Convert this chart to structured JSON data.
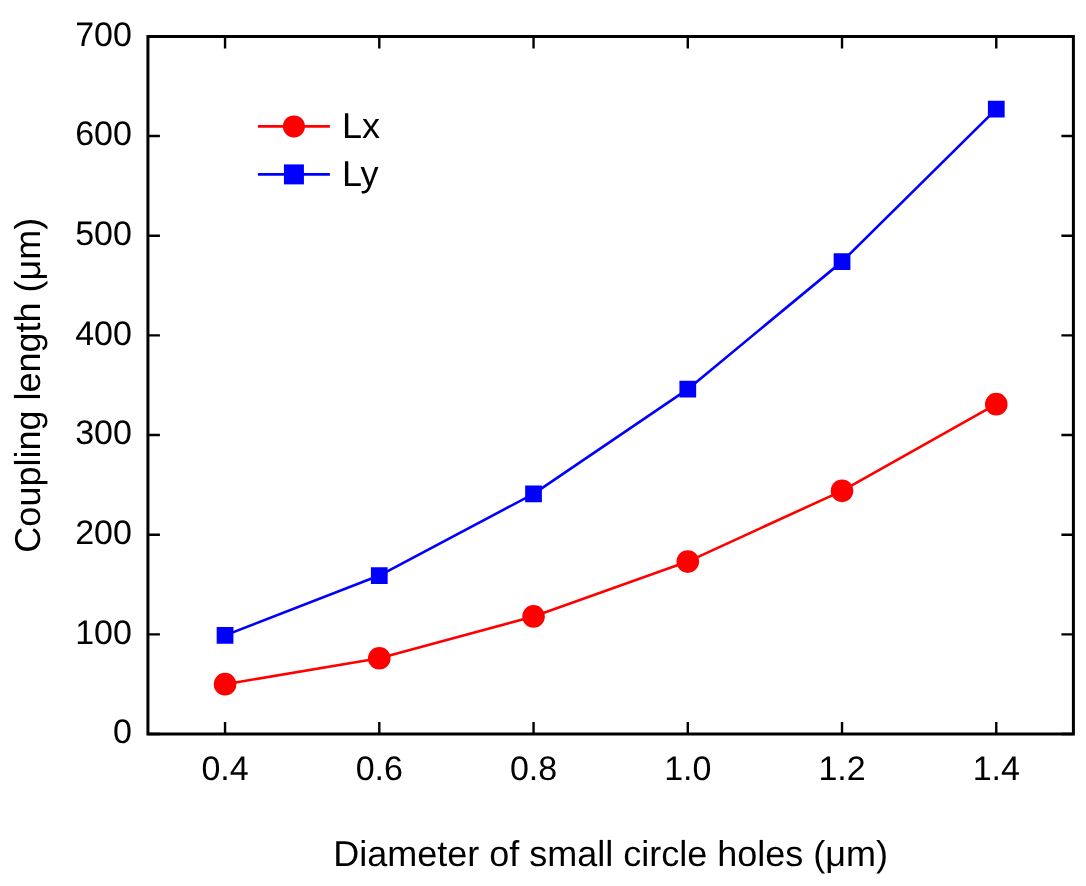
{
  "chart_data": {
    "type": "line",
    "xlabel": "Diameter of small circle holes (μm)",
    "ylabel": "Coupling length (μm)",
    "x": [
      0.4,
      0.6,
      0.8,
      1.0,
      1.2,
      1.4
    ],
    "series": [
      {
        "name": "Lx",
        "color": "#ff0000",
        "marker": "circle",
        "values": [
          50,
          76,
          118,
          173,
          244,
          331
        ]
      },
      {
        "name": "Ly",
        "color": "#0000ff",
        "marker": "square",
        "values": [
          99,
          159,
          241,
          346,
          474,
          627
        ]
      }
    ],
    "xlim": [
      0.3,
      1.5
    ],
    "xticks": [
      {
        "value": 0.4,
        "label": "0.4"
      },
      {
        "value": 0.6,
        "label": "0.6"
      },
      {
        "value": 0.8,
        "label": "0.8"
      },
      {
        "value": 1.0,
        "label": "1.0"
      },
      {
        "value": 1.2,
        "label": "1.2"
      },
      {
        "value": 1.4,
        "label": "1.4"
      }
    ],
    "ylim": [
      0,
      700
    ],
    "yticks": [
      0,
      100,
      200,
      300,
      400,
      500,
      600,
      700
    ],
    "grid": false,
    "legend": "top left",
    "line_style": "solid"
  }
}
